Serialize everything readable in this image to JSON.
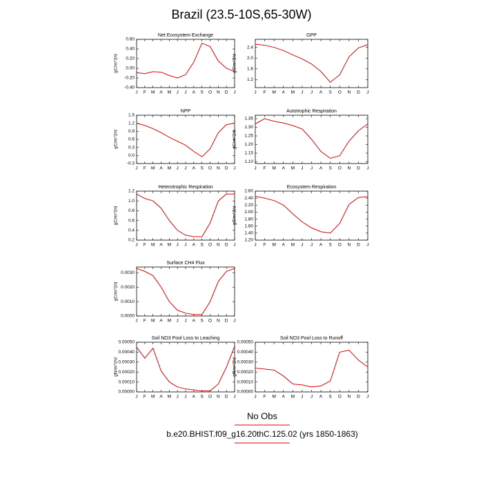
{
  "title": "Brazil (23.5-10S,65-30W)",
  "footer": [
    "No Obs",
    "b.e20.BHIST.f09_g16.20thC.125.02 (yrs 1850-1863)"
  ],
  "chart_data": [
    {
      "type": "line",
      "title": "Net Ecosystem Exchange",
      "ylabel": "gC/m^2/d",
      "color": "#e00000",
      "categories": [
        "J",
        "F",
        "M",
        "A",
        "M",
        "J",
        "J",
        "A",
        "S",
        "O",
        "N",
        "D",
        "J"
      ],
      "values": [
        -0.09,
        -0.11,
        -0.07,
        -0.08,
        -0.15,
        -0.2,
        -0.13,
        0.13,
        0.52,
        0.45,
        0.15,
        0.0,
        -0.07
      ],
      "ylim": [
        -0.4,
        0.6
      ],
      "yticks": [
        {
          "value": -0.4,
          "label": "-0.40"
        },
        {
          "value": -0.2,
          "label": "-0.20"
        },
        {
          "value": 0,
          "label": "0.00"
        },
        {
          "value": 0.2,
          "label": "0.20"
        },
        {
          "value": 0.4,
          "label": "0.40"
        },
        {
          "value": 0.6,
          "label": "0.60"
        }
      ]
    },
    {
      "type": "line",
      "title": "GPP",
      "ylabel": "gC/m^2/d",
      "color": "#e00000",
      "categories": [
        "J",
        "F",
        "M",
        "A",
        "M",
        "J",
        "J",
        "A",
        "S",
        "O",
        "N",
        "D",
        "J"
      ],
      "values": [
        2.52,
        2.48,
        2.4,
        2.28,
        2.12,
        1.97,
        1.78,
        1.5,
        1.1,
        1.38,
        2.05,
        2.38,
        2.5
      ],
      "ylim": [
        0.9,
        2.7
      ],
      "yticks": [
        1.2,
        1.6,
        {
          "value": 2,
          "label": "2.0"
        },
        2.4
      ]
    },
    {
      "type": "line",
      "title": "NPP",
      "ylabel": "gC/m^2/d",
      "color": "#e00000",
      "categories": [
        "J",
        "F",
        "M",
        "A",
        "M",
        "J",
        "J",
        "A",
        "S",
        "O",
        "N",
        "D",
        "J"
      ],
      "values": [
        1.2,
        1.12,
        1.0,
        0.85,
        0.68,
        0.53,
        0.38,
        0.15,
        -0.05,
        0.25,
        0.85,
        1.15,
        1.2
      ],
      "ylim": [
        -0.3,
        1.5
      ],
      "yticks": [
        -0.3,
        {
          "value": 0,
          "label": "0.0"
        },
        0.3,
        0.6,
        0.9,
        1.2,
        1.5
      ]
    },
    {
      "type": "line",
      "title": "Autotrophic Respiration",
      "ylabel": "gC/m^2/d",
      "color": "#e00000",
      "categories": [
        "J",
        "F",
        "M",
        "A",
        "M",
        "J",
        "J",
        "A",
        "S",
        "O",
        "N",
        "D",
        "J"
      ],
      "values": [
        1.32,
        1.35,
        1.335,
        1.325,
        1.31,
        1.29,
        1.23,
        1.16,
        1.12,
        1.135,
        1.22,
        1.28,
        1.32
      ],
      "ylim": [
        1.09,
        1.37
      ],
      "yticks": [
        {
          "value": 1.1,
          "label": "1.10"
        },
        1.15,
        {
          "value": 1.2,
          "label": "1.20"
        },
        1.25,
        {
          "value": 1.3,
          "label": "1.30"
        },
        1.35
      ]
    },
    {
      "type": "line",
      "title": "Heterotrophic Respiration",
      "ylabel": "gC/m^2/d",
      "color": "#e00000",
      "categories": [
        "J",
        "F",
        "M",
        "A",
        "M",
        "J",
        "J",
        "A",
        "S",
        "O",
        "N",
        "D",
        "J"
      ],
      "values": [
        1.14,
        1.05,
        1.0,
        0.85,
        0.6,
        0.4,
        0.3,
        0.27,
        0.27,
        0.55,
        1.0,
        1.14,
        1.14
      ],
      "ylim": [
        0.2,
        1.2
      ],
      "yticks": [
        0.2,
        0.4,
        0.6,
        0.8,
        {
          "value": 1,
          "label": "1.0"
        },
        1.2
      ]
    },
    {
      "type": "line",
      "title": "Ecosystem Respiration",
      "ylabel": "gC/m^2/d",
      "color": "#e00000",
      "categories": [
        "J",
        "F",
        "M",
        "A",
        "M",
        "J",
        "J",
        "A",
        "S",
        "O",
        "N",
        "D",
        "J"
      ],
      "values": [
        2.45,
        2.4,
        2.33,
        2.2,
        1.95,
        1.72,
        1.55,
        1.44,
        1.4,
        1.68,
        2.22,
        2.42,
        2.44
      ],
      "ylim": [
        1.2,
        2.6
      ],
      "yticks": [
        {
          "value": 1.2,
          "label": "1.20"
        },
        {
          "value": 1.4,
          "label": "1.40"
        },
        {
          "value": 1.6,
          "label": "1.60"
        },
        {
          "value": 1.8,
          "label": "1.80"
        },
        {
          "value": 2,
          "label": "2.00"
        },
        {
          "value": 2.2,
          "label": "2.20"
        },
        {
          "value": 2.4,
          "label": "2.40"
        },
        {
          "value": 2.6,
          "label": "2.60"
        }
      ]
    },
    {
      "type": "line",
      "title": "Surface CH4 Flux",
      "ylabel": "gC/m^2/d",
      "color": "#e00000",
      "categories": [
        "J",
        "F",
        "M",
        "A",
        "M",
        "J",
        "J",
        "A",
        "S",
        "O",
        "N",
        "D",
        "J"
      ],
      "values": [
        0.0033,
        0.0031,
        0.0028,
        0.002,
        0.001,
        0.0004,
        0.0002,
        0.0001,
        0.0001,
        0.001,
        0.0024,
        0.0031,
        0.0033
      ],
      "ylim": [
        0,
        0.0034
      ],
      "yticks": [
        {
          "value": 0,
          "label": "0.0000"
        },
        {
          "value": 0.001,
          "label": "0.0010"
        },
        {
          "value": 0.002,
          "label": "0.0020"
        },
        {
          "value": 0.003,
          "label": "0.0030"
        }
      ]
    },
    {
      "type": "line",
      "title": "Soil NO3 Pool Loss to Leaching",
      "ylabel": "gN/m^2/d",
      "color": "#e00000",
      "categories": [
        "J",
        "F",
        "M",
        "A",
        "M",
        "J",
        "J",
        "A",
        "S",
        "O",
        "N",
        "D",
        "J"
      ],
      "values": [
        0.00045,
        0.00034,
        0.00044,
        0.00021,
        0.0001,
        5e-05,
        3e-05,
        2e-05,
        1e-05,
        1e-05,
        8e-05,
        0.00025,
        0.00046
      ],
      "ylim": [
        0,
        0.0005
      ],
      "yticks": [
        {
          "value": 0,
          "label": "0.00000"
        },
        {
          "value": 0.0001,
          "label": "0.00010"
        },
        {
          "value": 0.0002,
          "label": "0.00020"
        },
        {
          "value": 0.0003,
          "label": "0.00030"
        },
        {
          "value": 0.0004,
          "label": "0.00040"
        },
        {
          "value": 0.0005,
          "label": "0.00050"
        }
      ]
    },
    {
      "type": "line",
      "title": "Soil NO3 Pool Loss to Runoff",
      "ylabel": "gN/m^2/d",
      "color": "#e00000",
      "categories": [
        "J",
        "F",
        "M",
        "A",
        "M",
        "J",
        "J",
        "A",
        "S",
        "O",
        "N",
        "D",
        "J"
      ],
      "values": [
        0.00024,
        0.00023,
        0.00022,
        0.00016,
        8e-05,
        7e-05,
        5e-05,
        6e-05,
        0.00011,
        0.0004,
        0.00042,
        0.00032,
        0.00025
      ],
      "ylim": [
        0,
        0.0005
      ],
      "yticks": [
        {
          "value": 0,
          "label": "0.00000"
        },
        {
          "value": 0.0001,
          "label": "0.00010"
        },
        {
          "value": 0.0002,
          "label": "0.00020"
        },
        {
          "value": 0.0003,
          "label": "0.00030"
        },
        {
          "value": 0.0004,
          "label": "0.00040"
        },
        {
          "value": 0.0005,
          "label": "0.00050"
        }
      ]
    }
  ]
}
